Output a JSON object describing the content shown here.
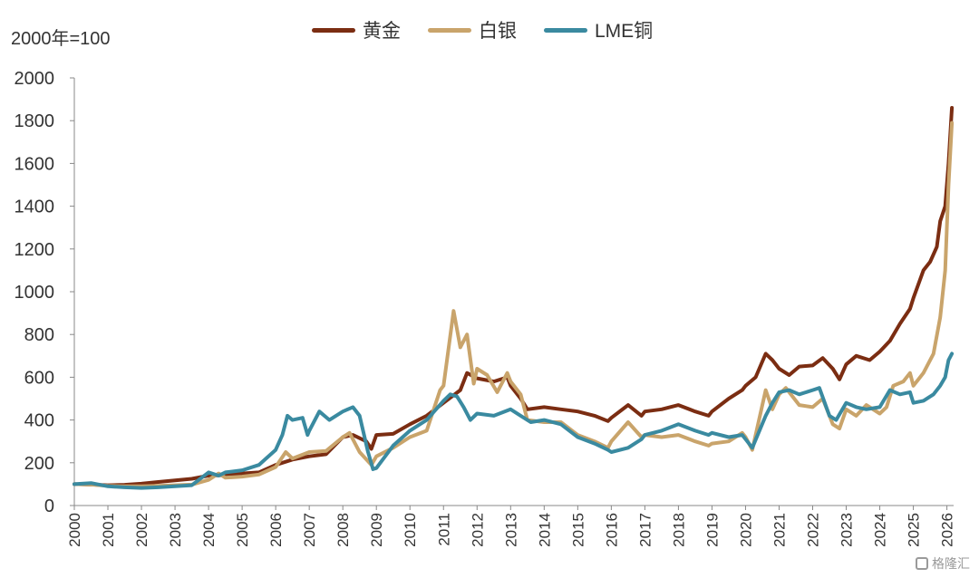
{
  "unit_label": "2000年=100",
  "watermark": "格隆汇",
  "chart_data": {
    "type": "line",
    "title": "",
    "xlabel": "",
    "ylabel": "",
    "ylim": [
      0,
      2000
    ],
    "xlim": [
      2000,
      2026.2
    ],
    "yticks": [
      "0",
      "200",
      "400",
      "600",
      "800",
      "1000",
      "1200",
      "1400",
      "1600",
      "1800",
      "2000"
    ],
    "xticks": [
      "2000",
      "2001",
      "2002",
      "2003",
      "2004",
      "2005",
      "2006",
      "2007",
      "2008",
      "2009",
      "2010",
      "2011",
      "2012",
      "2013",
      "2014",
      "2015",
      "2016",
      "2017",
      "2018",
      "2019",
      "2020",
      "2021",
      "2022",
      "2023",
      "2024",
      "2025",
      "2026"
    ],
    "grid": false,
    "legend_position": "top-center",
    "series": [
      {
        "name": "黄金",
        "color": "#7b2d12",
        "points": [
          [
            2000,
            100
          ],
          [
            2000.5,
            98
          ],
          [
            2001,
            95
          ],
          [
            2001.5,
            97
          ],
          [
            2002,
            102
          ],
          [
            2002.5,
            110
          ],
          [
            2003,
            118
          ],
          [
            2003.5,
            125
          ],
          [
            2004,
            140
          ],
          [
            2004.5,
            142
          ],
          [
            2005,
            150
          ],
          [
            2005.5,
            155
          ],
          [
            2006,
            190
          ],
          [
            2006.5,
            215
          ],
          [
            2007,
            230
          ],
          [
            2007.5,
            240
          ],
          [
            2008,
            320
          ],
          [
            2008.3,
            330
          ],
          [
            2008.7,
            300
          ],
          [
            2008.85,
            265
          ],
          [
            2009,
            330
          ],
          [
            2009.5,
            335
          ],
          [
            2010,
            380
          ],
          [
            2010.5,
            420
          ],
          [
            2011,
            480
          ],
          [
            2011.5,
            540
          ],
          [
            2011.7,
            620
          ],
          [
            2012,
            595
          ],
          [
            2012.5,
            580
          ],
          [
            2012.9,
            600
          ],
          [
            2013,
            560
          ],
          [
            2013.3,
            500
          ],
          [
            2013.5,
            450
          ],
          [
            2014,
            460
          ],
          [
            2014.5,
            450
          ],
          [
            2015,
            440
          ],
          [
            2015.5,
            420
          ],
          [
            2015.9,
            395
          ],
          [
            2016,
            410
          ],
          [
            2016.5,
            470
          ],
          [
            2016.9,
            420
          ],
          [
            2017,
            440
          ],
          [
            2017.5,
            450
          ],
          [
            2018,
            470
          ],
          [
            2018.5,
            440
          ],
          [
            2018.9,
            420
          ],
          [
            2019,
            440
          ],
          [
            2019.5,
            500
          ],
          [
            2019.9,
            540
          ],
          [
            2020,
            560
          ],
          [
            2020.3,
            600
          ],
          [
            2020.6,
            710
          ],
          [
            2020.8,
            680
          ],
          [
            2021,
            640
          ],
          [
            2021.3,
            610
          ],
          [
            2021.6,
            650
          ],
          [
            2022,
            655
          ],
          [
            2022.3,
            690
          ],
          [
            2022.6,
            640
          ],
          [
            2022.8,
            590
          ],
          [
            2023,
            660
          ],
          [
            2023.3,
            700
          ],
          [
            2023.7,
            680
          ],
          [
            2024,
            720
          ],
          [
            2024.3,
            770
          ],
          [
            2024.6,
            850
          ],
          [
            2024.9,
            920
          ],
          [
            2025,
            970
          ],
          [
            2025.3,
            1100
          ],
          [
            2025.5,
            1140
          ],
          [
            2025.7,
            1210
          ],
          [
            2025.8,
            1330
          ],
          [
            2025.95,
            1400
          ],
          [
            2026.05,
            1600
          ],
          [
            2026.15,
            1860
          ]
        ]
      },
      {
        "name": "白银",
        "color": "#c9a46b",
        "points": [
          [
            2000,
            100
          ],
          [
            2000.5,
            98
          ],
          [
            2001,
            92
          ],
          [
            2001.5,
            90
          ],
          [
            2002,
            90
          ],
          [
            2002.5,
            92
          ],
          [
            2003,
            95
          ],
          [
            2003.5,
            98
          ],
          [
            2004,
            120
          ],
          [
            2004.3,
            150
          ],
          [
            2004.5,
            130
          ],
          [
            2005,
            135
          ],
          [
            2005.5,
            145
          ],
          [
            2006,
            180
          ],
          [
            2006.3,
            250
          ],
          [
            2006.5,
            220
          ],
          [
            2007,
            250
          ],
          [
            2007.5,
            255
          ],
          [
            2008,
            320
          ],
          [
            2008.2,
            340
          ],
          [
            2008.5,
            250
          ],
          [
            2008.85,
            190
          ],
          [
            2009,
            230
          ],
          [
            2009.5,
            270
          ],
          [
            2010,
            320
          ],
          [
            2010.5,
            350
          ],
          [
            2010.9,
            540
          ],
          [
            2011,
            560
          ],
          [
            2011.3,
            910
          ],
          [
            2011.5,
            740
          ],
          [
            2011.7,
            800
          ],
          [
            2011.9,
            570
          ],
          [
            2012,
            640
          ],
          [
            2012.3,
            610
          ],
          [
            2012.6,
            530
          ],
          [
            2012.9,
            620
          ],
          [
            2013,
            580
          ],
          [
            2013.3,
            520
          ],
          [
            2013.5,
            400
          ],
          [
            2014,
            390
          ],
          [
            2014.5,
            390
          ],
          [
            2015,
            330
          ],
          [
            2015.5,
            300
          ],
          [
            2015.9,
            270
          ],
          [
            2016,
            300
          ],
          [
            2016.5,
            390
          ],
          [
            2016.9,
            320
          ],
          [
            2017,
            330
          ],
          [
            2017.5,
            320
          ],
          [
            2018,
            330
          ],
          [
            2018.5,
            300
          ],
          [
            2018.9,
            280
          ],
          [
            2019,
            290
          ],
          [
            2019.5,
            300
          ],
          [
            2019.9,
            340
          ],
          [
            2020,
            320
          ],
          [
            2020.2,
            260
          ],
          [
            2020.6,
            540
          ],
          [
            2020.8,
            450
          ],
          [
            2021,
            520
          ],
          [
            2021.2,
            550
          ],
          [
            2021.6,
            470
          ],
          [
            2022,
            460
          ],
          [
            2022.3,
            500
          ],
          [
            2022.6,
            380
          ],
          [
            2022.8,
            360
          ],
          [
            2023,
            450
          ],
          [
            2023.3,
            420
          ],
          [
            2023.6,
            470
          ],
          [
            2024,
            430
          ],
          [
            2024.2,
            460
          ],
          [
            2024.4,
            560
          ],
          [
            2024.7,
            580
          ],
          [
            2024.9,
            620
          ],
          [
            2025,
            560
          ],
          [
            2025.3,
            620
          ],
          [
            2025.6,
            710
          ],
          [
            2025.8,
            880
          ],
          [
            2025.95,
            1100
          ],
          [
            2026.05,
            1500
          ],
          [
            2026.15,
            1790
          ]
        ]
      },
      {
        "name": "LME铜",
        "color": "#3a8aa0",
        "points": [
          [
            2000,
            100
          ],
          [
            2000.5,
            105
          ],
          [
            2001,
            90
          ],
          [
            2001.5,
            85
          ],
          [
            2002,
            82
          ],
          [
            2002.5,
            85
          ],
          [
            2003,
            90
          ],
          [
            2003.5,
            95
          ],
          [
            2004,
            155
          ],
          [
            2004.3,
            140
          ],
          [
            2004.5,
            155
          ],
          [
            2005,
            165
          ],
          [
            2005.5,
            190
          ],
          [
            2006,
            260
          ],
          [
            2006.2,
            330
          ],
          [
            2006.35,
            420
          ],
          [
            2006.5,
            400
          ],
          [
            2006.8,
            410
          ],
          [
            2006.95,
            330
          ],
          [
            2007,
            350
          ],
          [
            2007.3,
            440
          ],
          [
            2007.6,
            400
          ],
          [
            2008,
            440
          ],
          [
            2008.3,
            460
          ],
          [
            2008.5,
            420
          ],
          [
            2008.75,
            250
          ],
          [
            2008.9,
            170
          ],
          [
            2009,
            175
          ],
          [
            2009.5,
            280
          ],
          [
            2010,
            350
          ],
          [
            2010.5,
            400
          ],
          [
            2011,
            490
          ],
          [
            2011.2,
            520
          ],
          [
            2011.4,
            510
          ],
          [
            2011.6,
            460
          ],
          [
            2011.8,
            400
          ],
          [
            2012,
            430
          ],
          [
            2012.5,
            420
          ],
          [
            2013,
            450
          ],
          [
            2013.3,
            420
          ],
          [
            2013.6,
            390
          ],
          [
            2014,
            400
          ],
          [
            2014.5,
            380
          ],
          [
            2015,
            320
          ],
          [
            2015.5,
            290
          ],
          [
            2015.9,
            260
          ],
          [
            2016,
            250
          ],
          [
            2016.5,
            270
          ],
          [
            2016.9,
            310
          ],
          [
            2017,
            330
          ],
          [
            2017.5,
            350
          ],
          [
            2018,
            380
          ],
          [
            2018.5,
            350
          ],
          [
            2018.9,
            330
          ],
          [
            2019,
            340
          ],
          [
            2019.5,
            320
          ],
          [
            2019.9,
            330
          ],
          [
            2020,
            310
          ],
          [
            2020.2,
            270
          ],
          [
            2020.6,
            420
          ],
          [
            2020.8,
            480
          ],
          [
            2021,
            530
          ],
          [
            2021.3,
            540
          ],
          [
            2021.6,
            520
          ],
          [
            2022,
            540
          ],
          [
            2022.2,
            550
          ],
          [
            2022.5,
            420
          ],
          [
            2022.7,
            400
          ],
          [
            2023,
            480
          ],
          [
            2023.3,
            460
          ],
          [
            2023.6,
            450
          ],
          [
            2024,
            460
          ],
          [
            2024.3,
            540
          ],
          [
            2024.6,
            520
          ],
          [
            2024.9,
            530
          ],
          [
            2025,
            480
          ],
          [
            2025.3,
            490
          ],
          [
            2025.6,
            520
          ],
          [
            2025.8,
            560
          ],
          [
            2025.95,
            600
          ],
          [
            2026.05,
            680
          ],
          [
            2026.15,
            710
          ]
        ]
      }
    ]
  }
}
